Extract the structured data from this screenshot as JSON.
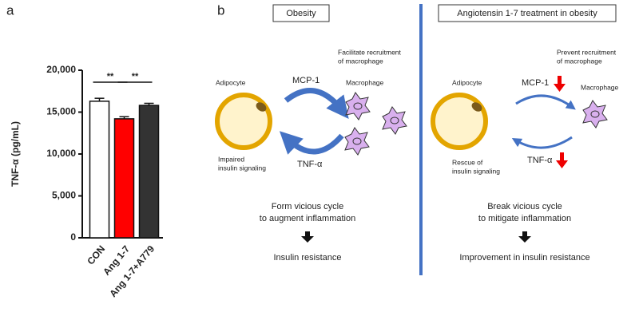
{
  "chart_data": {
    "type": "bar",
    "panel_label": "a",
    "ylabel": "TNF-α (pg/mL)",
    "categories": [
      "CON",
      "Ang 1-7",
      "Ang 1-7+A779"
    ],
    "values": [
      16300,
      14200,
      15800
    ],
    "errors": [
      350,
      250,
      250
    ],
    "colors": [
      "#ffffff",
      "#ff0000",
      "#333333"
    ],
    "ylim": [
      0,
      20000
    ],
    "yticks": [
      0,
      {
        "value": 5000,
        "label": "5,000"
      },
      {
        "value": 10000,
        "label": "10,000"
      },
      {
        "value": 15000,
        "label": "15,000"
      },
      {
        "value": 20000,
        "label": "20,000"
      }
    ],
    "annotations": [
      "**",
      "**"
    ]
  },
  "panel_b": {
    "label": "b",
    "left": {
      "title": "Obesity",
      "adipocyte": "Adipocyte",
      "mcp1": "MCP-1",
      "macrophage": "Macrophage",
      "note": [
        "Facilitate recruitment",
        "of macrophage"
      ],
      "insulin_note": [
        "Impaired",
        "insulin signaling"
      ],
      "tnf": "TNF-α",
      "cycle": [
        "Form vicious cycle",
        "to augment inflammation"
      ],
      "outcome": "Insulin resistance"
    },
    "right": {
      "title": "Angiotensin 1-7 treatment in obesity",
      "adipocyte": "Adipocyte",
      "mcp1": "MCP-1",
      "macrophage": "Macrophage",
      "note": [
        "Prevent recruitment",
        "of macrophage"
      ],
      "insulin_note": [
        "Rescue of",
        "insulin signaling"
      ],
      "tnf": "TNF-α",
      "cycle": [
        "Break vicious cycle",
        "to mitigate inflammation"
      ],
      "outcome": "Improvement in insulin resistance"
    }
  }
}
